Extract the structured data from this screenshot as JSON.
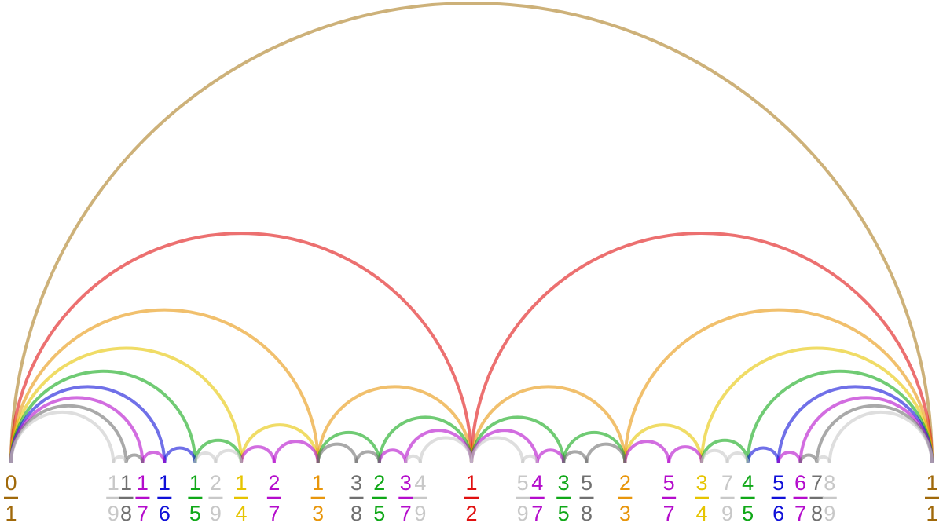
{
  "fractions": [
    {
      "numerator": 0,
      "denominator": 1,
      "color": "#a0690a"
    },
    {
      "numerator": 1,
      "denominator": 9,
      "color": "#c8c8c8"
    },
    {
      "numerator": 1,
      "denominator": 8,
      "color": "#707070"
    },
    {
      "numerator": 1,
      "denominator": 7,
      "color": "#b40ccc"
    },
    {
      "numerator": 1,
      "denominator": 6,
      "color": "#1010d8"
    },
    {
      "numerator": 1,
      "denominator": 5,
      "color": "#10a818"
    },
    {
      "numerator": 2,
      "denominator": 9,
      "color": "#c8c8c8"
    },
    {
      "numerator": 1,
      "denominator": 4,
      "color": "#e6c400"
    },
    {
      "numerator": 2,
      "denominator": 7,
      "color": "#b40ccc"
    },
    {
      "numerator": 1,
      "denominator": 3,
      "color": "#e8960c"
    },
    {
      "numerator": 3,
      "denominator": 8,
      "color": "#707070"
    },
    {
      "numerator": 2,
      "denominator": 5,
      "color": "#10a818"
    },
    {
      "numerator": 3,
      "denominator": 7,
      "color": "#b40ccc"
    },
    {
      "numerator": 4,
      "denominator": 9,
      "color": "#c8c8c8"
    },
    {
      "numerator": 1,
      "denominator": 2,
      "color": "#e01010"
    },
    {
      "numerator": 5,
      "denominator": 9,
      "color": "#c8c8c8"
    },
    {
      "numerator": 4,
      "denominator": 7,
      "color": "#b40ccc"
    },
    {
      "numerator": 3,
      "denominator": 5,
      "color": "#10a818"
    },
    {
      "numerator": 5,
      "denominator": 8,
      "color": "#707070"
    },
    {
      "numerator": 2,
      "denominator": 3,
      "color": "#e8960c"
    },
    {
      "numerator": 5,
      "denominator": 7,
      "color": "#b40ccc"
    },
    {
      "numerator": 3,
      "denominator": 4,
      "color": "#e6c400"
    },
    {
      "numerator": 7,
      "denominator": 9,
      "color": "#c8c8c8"
    },
    {
      "numerator": 4,
      "denominator": 5,
      "color": "#10a818"
    },
    {
      "numerator": 5,
      "denominator": 6,
      "color": "#1010d8"
    },
    {
      "numerator": 6,
      "denominator": 7,
      "color": "#b40ccc"
    },
    {
      "numerator": 7,
      "denominator": 8,
      "color": "#707070"
    },
    {
      "numerator": 8,
      "denominator": 9,
      "color": "#c8c8c8"
    },
    {
      "numerator": 1,
      "denominator": 1,
      "color": "#a0690a"
    }
  ]
}
